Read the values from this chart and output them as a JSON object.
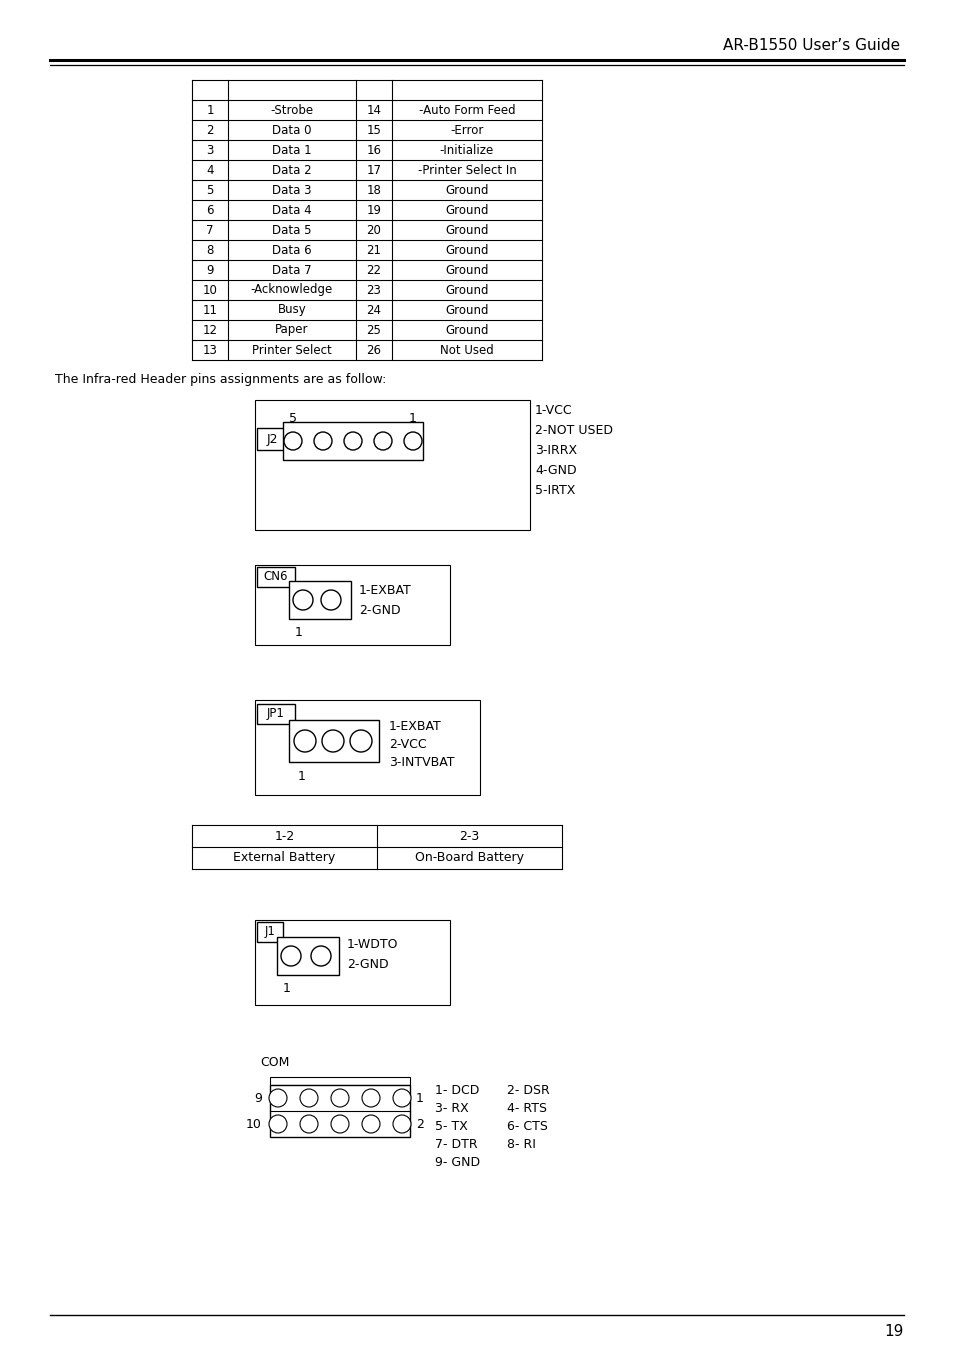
{
  "title": "AR-B1550 User’s Guide",
  "page_number": "19",
  "background_color": "#ffffff",
  "table_rows": [
    [
      "1",
      "-Strobe",
      "14",
      "-Auto Form Feed"
    ],
    [
      "2",
      "Data 0",
      "15",
      "-Error"
    ],
    [
      "3",
      "Data 1",
      "16",
      "-Initialize"
    ],
    [
      "4",
      "Data 2",
      "17",
      "-Printer Select In"
    ],
    [
      "5",
      "Data 3",
      "18",
      "Ground"
    ],
    [
      "6",
      "Data 4",
      "19",
      "Ground"
    ],
    [
      "7",
      "Data 5",
      "20",
      "Ground"
    ],
    [
      "8",
      "Data 6",
      "21",
      "Ground"
    ],
    [
      "9",
      "Data 7",
      "22",
      "Ground"
    ],
    [
      "10",
      "-Acknowledge",
      "23",
      "Ground"
    ],
    [
      "11",
      "Busy",
      "24",
      "Ground"
    ],
    [
      "12",
      "Paper",
      "25",
      "Ground"
    ],
    [
      "13",
      "Printer Select",
      "26",
      "Not Used"
    ]
  ],
  "ir_text": "The Infra-red Header pins assignments are as follow:",
  "j2_pin_labels": [
    "1-VCC",
    "2-NOT USED",
    "3-IRRX",
    "4-GND",
    "5-IRTX"
  ],
  "cn6_pin_labels": [
    "1-EXBAT",
    "2-GND"
  ],
  "jp1_pin_labels": [
    "1-EXBAT",
    "2-VCC",
    "3-INTVBAT"
  ],
  "jumper_table_row1": [
    "1-2",
    "2-3"
  ],
  "jumper_table_row2": [
    "External Battery",
    "On-Board Battery"
  ],
  "j1_pin_labels": [
    "1-WDTO",
    "2-GND"
  ],
  "com_pin_labels_col1": [
    "1- DCD",
    "3- RX",
    "5- TX",
    "7- DTR",
    "9- GND"
  ],
  "com_pin_labels_col2": [
    "2- DSR",
    "4- RTS",
    "6- CTS",
    "8- RI"
  ]
}
